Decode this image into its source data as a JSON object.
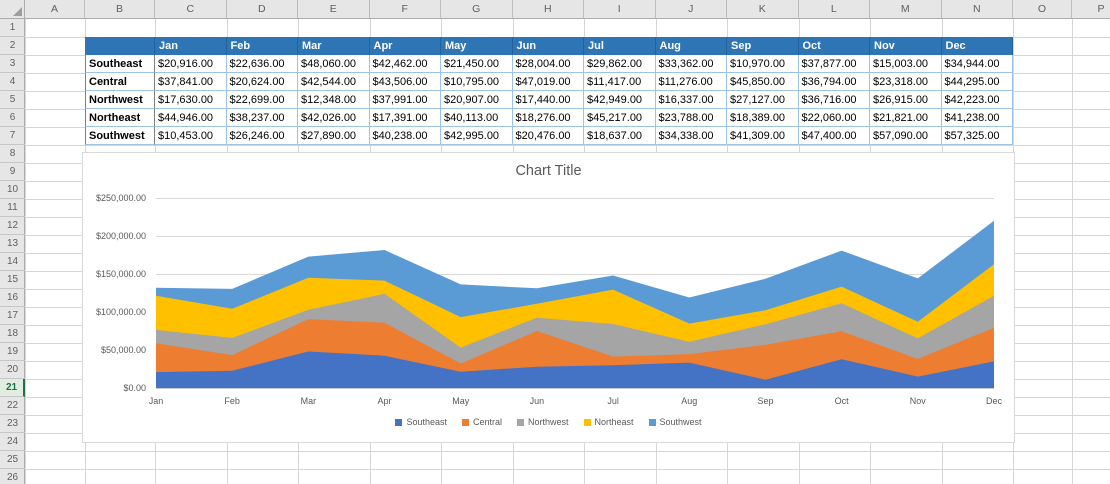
{
  "spreadsheet": {
    "column_headers": [
      "A",
      "B",
      "C",
      "D",
      "E",
      "F",
      "G",
      "H",
      "I",
      "J",
      "K",
      "L",
      "M",
      "N",
      "O",
      "P"
    ],
    "row_numbers": [
      1,
      2,
      3,
      4,
      5,
      6,
      7,
      8,
      9,
      10,
      11,
      12,
      13,
      14,
      15,
      16,
      17,
      18,
      19,
      20,
      21,
      22,
      23,
      24,
      25,
      26
    ],
    "selected_row": 21
  },
  "table": {
    "months": [
      "Jan",
      "Feb",
      "Mar",
      "Apr",
      "May",
      "Jun",
      "Jul",
      "Aug",
      "Sep",
      "Oct",
      "Nov",
      "Dec"
    ],
    "rows": [
      {
        "region": "Southeast",
        "values": [
          "$20,916.00",
          "$22,636.00",
          "$48,060.00",
          "$42,462.00",
          "$21,450.00",
          "$28,004.00",
          "$29,862.00",
          "$33,362.00",
          "$10,970.00",
          "$37,877.00",
          "$15,003.00",
          "$34,944.00"
        ]
      },
      {
        "region": "Central",
        "values": [
          "$37,841.00",
          "$20,624.00",
          "$42,544.00",
          "$43,506.00",
          "$10,795.00",
          "$47,019.00",
          "$11,417.00",
          "$11,276.00",
          "$45,850.00",
          "$36,794.00",
          "$23,318.00",
          "$44,295.00"
        ]
      },
      {
        "region": "Northwest",
        "values": [
          "$17,630.00",
          "$22,699.00",
          "$12,348.00",
          "$37,991.00",
          "$20,907.00",
          "$17,440.00",
          "$42,949.00",
          "$16,337.00",
          "$27,127.00",
          "$36,716.00",
          "$26,915.00",
          "$42,223.00"
        ]
      },
      {
        "region": "Northeast",
        "values": [
          "$44,946.00",
          "$38,237.00",
          "$42,026.00",
          "$17,391.00",
          "$40,113.00",
          "$18,276.00",
          "$45,217.00",
          "$23,788.00",
          "$18,389.00",
          "$22,060.00",
          "$21,821.00",
          "$41,238.00"
        ]
      },
      {
        "region": "Southwest",
        "values": [
          "$10,453.00",
          "$26,246.00",
          "$27,890.00",
          "$40,238.00",
          "$42,995.00",
          "$20,476.00",
          "$18,637.00",
          "$34,338.00",
          "$41,309.00",
          "$47,400.00",
          "$57,090.00",
          "$57,325.00"
        ]
      }
    ]
  },
  "chart_data": {
    "type": "area",
    "stacked": true,
    "title": "Chart Title",
    "categories": [
      "Jan",
      "Feb",
      "Mar",
      "Apr",
      "May",
      "Jun",
      "Jul",
      "Aug",
      "Sep",
      "Oct",
      "Nov",
      "Dec"
    ],
    "series": [
      {
        "name": "Southeast",
        "color": "#4472C4",
        "values": [
          20916,
          22636,
          48060,
          42462,
          21450,
          28004,
          29862,
          33362,
          10970,
          37877,
          15003,
          34944
        ]
      },
      {
        "name": "Central",
        "color": "#ED7D31",
        "values": [
          37841,
          20624,
          42544,
          43506,
          10795,
          47019,
          11417,
          11276,
          45850,
          36794,
          23318,
          44295
        ]
      },
      {
        "name": "Northwest",
        "color": "#A5A5A5",
        "values": [
          17630,
          22699,
          12348,
          37991,
          20907,
          17440,
          42949,
          16337,
          27127,
          36716,
          26915,
          42223
        ]
      },
      {
        "name": "Northeast",
        "color": "#FFC000",
        "values": [
          44946,
          38237,
          42026,
          17391,
          40113,
          18276,
          45217,
          23788,
          18389,
          22060,
          21821,
          41238
        ]
      },
      {
        "name": "Southwest",
        "color": "#5B9BD5",
        "values": [
          10453,
          26246,
          27890,
          40238,
          42995,
          20476,
          18637,
          34338,
          41309,
          47400,
          57090,
          57325
        ]
      }
    ],
    "y_ticks": [
      "$0.00",
      "$50,000.00",
      "$100,000.00",
      "$150,000.00",
      "$200,000.00",
      "$250,000.00"
    ],
    "ylim": [
      0,
      250000
    ],
    "xlabel": "",
    "ylabel": "",
    "legend_position": "bottom",
    "grid": true
  },
  "colors": {
    "table_header_bg": "#2E75B6",
    "selected_row_accent": "#1E7145",
    "axis_text": "#595959",
    "gridline": "#D9D9D9"
  }
}
